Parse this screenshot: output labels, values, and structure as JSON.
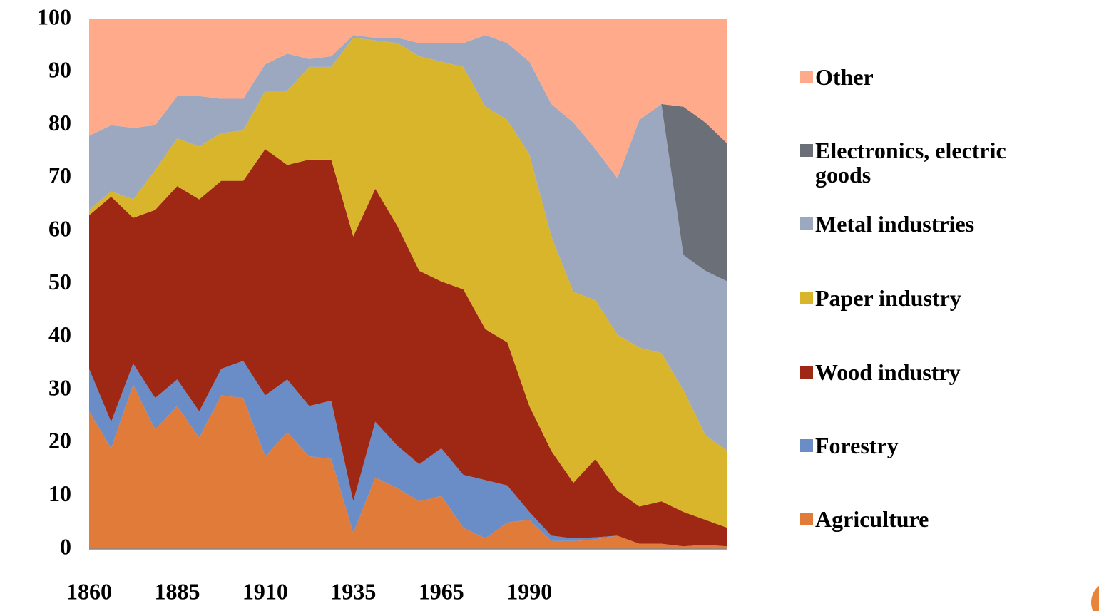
{
  "chart_data": {
    "type": "stacked_area",
    "categories": [
      "1860",
      null,
      null,
      null,
      "1885",
      null,
      null,
      null,
      "1910",
      null,
      null,
      null,
      "1935",
      null,
      null,
      null,
      "1965",
      null,
      null,
      null,
      "1990",
      null,
      null,
      null,
      null,
      null,
      null,
      null,
      null,
      null
    ],
    "series": [
      {
        "name": "Agriculture",
        "color": "#e07b39",
        "values": [
          26,
          19,
          31,
          22.5,
          27,
          21,
          29,
          28.5,
          17.5,
          22,
          17.5,
          17,
          3,
          13.5,
          11.5,
          9,
          10,
          4,
          2,
          5,
          5.5,
          1.5,
          1.5,
          1.8,
          2.5,
          1,
          1,
          0.5,
          0.8,
          0.5
        ]
      },
      {
        "name": "Forestry",
        "color": "#6a8cc7",
        "values": [
          8,
          5,
          4,
          6,
          5,
          5,
          5,
          7,
          11.5,
          10,
          9.5,
          11,
          6,
          10.5,
          8,
          7,
          9,
          10,
          11,
          7,
          1.5,
          1,
          0.5,
          0.4,
          0,
          0,
          0,
          0,
          0,
          0
        ]
      },
      {
        "name": "Wood industry",
        "color": "#9e2814",
        "values": [
          29,
          42.5,
          27.5,
          35.5,
          36.5,
          40,
          35.5,
          34,
          46.5,
          40.5,
          46.5,
          45.5,
          50,
          44,
          41.5,
          36.5,
          31.5,
          35,
          28.5,
          27,
          20,
          16,
          10.5,
          14.8,
          8.5,
          7,
          8,
          6.5,
          4.7,
          3.5
        ]
      },
      {
        "name": "Paper industry",
        "color": "#d9b52b",
        "values": [
          1,
          1,
          3.5,
          7.5,
          9,
          10,
          9,
          9.5,
          11,
          14,
          17.5,
          17.5,
          37.5,
          28,
          34.5,
          40.5,
          41.5,
          42,
          42,
          42,
          47.5,
          40.5,
          36,
          30,
          29.5,
          30,
          28,
          23,
          16,
          14.5
        ]
      },
      {
        "name": "Metal industries",
        "color": "#9ca7c0",
        "values": [
          14,
          12.5,
          13.5,
          8.5,
          8,
          9.5,
          6.5,
          6,
          5,
          7,
          1.5,
          2,
          0.5,
          0.5,
          1,
          2.5,
          3.5,
          4.5,
          13.5,
          14.5,
          17.5,
          25,
          32,
          28.5,
          29.5,
          43,
          47,
          25.5,
          31,
          32
        ]
      },
      {
        "name": "Electronics, electric goods",
        "color": "#6b6f78",
        "values": [
          0,
          0,
          0,
          0,
          0,
          0,
          0,
          0,
          0,
          0,
          0,
          0,
          0,
          0,
          0,
          0,
          0,
          0,
          0,
          0,
          0,
          0,
          0,
          0,
          0,
          0,
          0,
          28,
          28,
          26
        ]
      },
      {
        "name": "Other",
        "color": "#ffab8b",
        "values": [
          22,
          20,
          20.5,
          20,
          14.5,
          14.5,
          15,
          15,
          8.5,
          6.5,
          7.5,
          7,
          3,
          3.5,
          3.5,
          4.5,
          4.5,
          4.5,
          3,
          4.5,
          8,
          16,
          19.5,
          24.5,
          30,
          19,
          16,
          16.5,
          19.5,
          23.5
        ]
      }
    ],
    "ylim": [
      0,
      100
    ],
    "yticks": [
      0,
      10,
      20,
      30,
      40,
      50,
      60,
      70,
      80,
      90,
      100
    ],
    "grid": false
  }
}
